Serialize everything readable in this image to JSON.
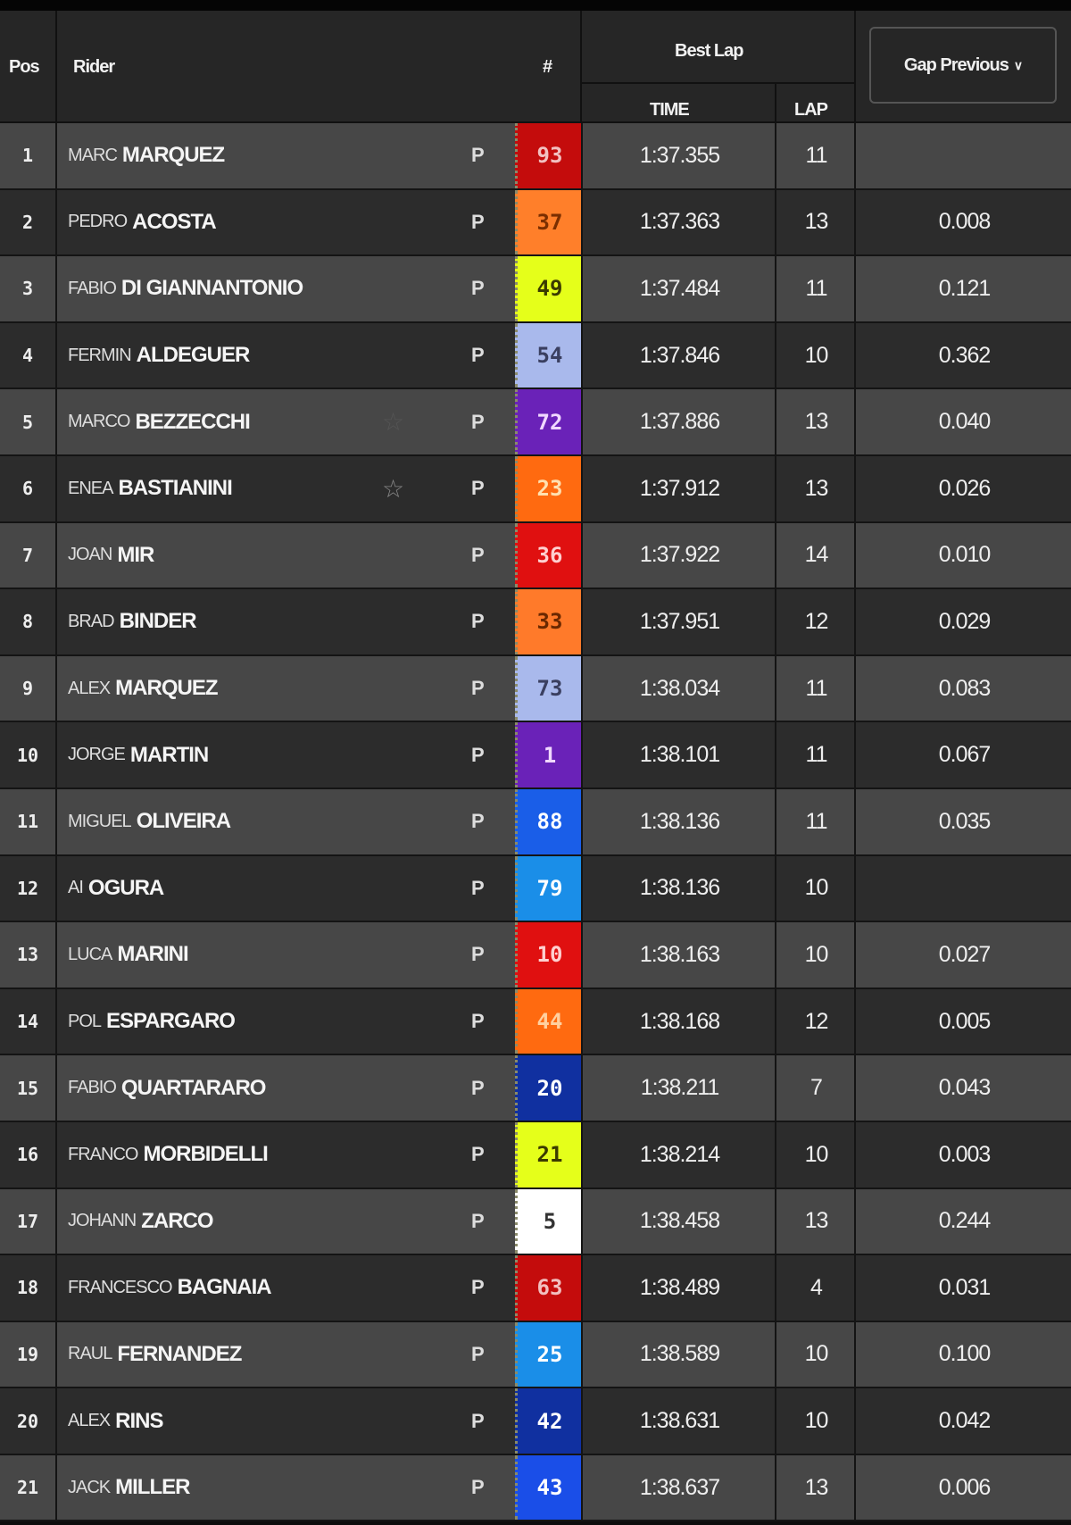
{
  "header": {
    "pos": "Pos",
    "rider": "Rider",
    "number": "#",
    "best_lap": "Best Lap",
    "time": "TIME",
    "lap": "LAP",
    "gap_dropdown": "Gap Previous",
    "gap_dropdown_icon": "chevron-down-icon"
  },
  "rows": [
    {
      "pos": "1",
      "first": "MARC",
      "last": "MARQUEZ",
      "num": "93",
      "color": "#c40c0c",
      "text": "#f2c0c0",
      "time": "1:37.355",
      "lap": "11",
      "gap": ""
    },
    {
      "pos": "2",
      "first": "PEDRO",
      "last": "ACOSTA",
      "num": "37",
      "color": "#ff7f2a",
      "text": "#7a2e00",
      "time": "1:37.363",
      "lap": "13",
      "gap": "0.008"
    },
    {
      "pos": "3",
      "first": "FABIO",
      "last": "DI GIANNANTONIO",
      "num": "49",
      "color": "#e5ff1a",
      "text": "#3a3a00",
      "time": "1:37.484",
      "lap": "11",
      "gap": "0.121"
    },
    {
      "pos": "4",
      "first": "FERMIN",
      "last": "ALDEGUER",
      "num": "54",
      "color": "#a9b9ec",
      "text": "#3a3f60",
      "time": "1:37.846",
      "lap": "10",
      "gap": "0.362"
    },
    {
      "pos": "5",
      "first": "MARCO",
      "last": "BEZZECCHI",
      "num": "72",
      "color": "#6a22b8",
      "text": "#f0d8ff",
      "time": "1:37.886",
      "lap": "13",
      "gap": "0.040",
      "star": true,
      "star_faint": true
    },
    {
      "pos": "6",
      "first": "ENEA",
      "last": "BASTIANINI",
      "num": "23",
      "color": "#ff6a10",
      "text": "#ffe0b0",
      "time": "1:37.912",
      "lap": "13",
      "gap": "0.026",
      "star": true
    },
    {
      "pos": "7",
      "first": "JOAN",
      "last": "MIR",
      "num": "36",
      "color": "#e01010",
      "text": "#ffd0d0",
      "time": "1:37.922",
      "lap": "14",
      "gap": "0.010"
    },
    {
      "pos": "8",
      "first": "BRAD",
      "last": "BINDER",
      "num": "33",
      "color": "#ff7a2a",
      "text": "#6a2800",
      "time": "1:37.951",
      "lap": "12",
      "gap": "0.029"
    },
    {
      "pos": "9",
      "first": "ALEX",
      "last": "MARQUEZ",
      "num": "73",
      "color": "#a9b9ec",
      "text": "#3a3f60",
      "time": "1:38.034",
      "lap": "11",
      "gap": "0.083"
    },
    {
      "pos": "10",
      "first": "JORGE",
      "last": "MARTIN",
      "num": "1",
      "color": "#6a22b8",
      "text": "#f0d8ff",
      "time": "1:38.101",
      "lap": "11",
      "gap": "0.067"
    },
    {
      "pos": "11",
      "first": "MIGUEL",
      "last": "OLIVEIRA",
      "num": "88",
      "color": "#1a5ee8",
      "text": "#ffffff",
      "time": "1:38.136",
      "lap": "11",
      "gap": "0.035"
    },
    {
      "pos": "12",
      "first": "AI",
      "last": "OGURA",
      "num": "79",
      "color": "#1a8ee8",
      "text": "#ffffff",
      "time": "1:38.136",
      "lap": "10",
      "gap": ""
    },
    {
      "pos": "13",
      "first": "LUCA",
      "last": "MARINI",
      "num": "10",
      "color": "#e01010",
      "text": "#ffd0d0",
      "time": "1:38.163",
      "lap": "10",
      "gap": "0.027"
    },
    {
      "pos": "14",
      "first": "POL",
      "last": "ESPARGARO",
      "num": "44",
      "color": "#ff6a10",
      "text": "#ffd0a0",
      "time": "1:38.168",
      "lap": "12",
      "gap": "0.005"
    },
    {
      "pos": "15",
      "first": "FABIO",
      "last": "QUARTARARO",
      "num": "20",
      "color": "#1030a0",
      "text": "#ffffff",
      "time": "1:38.211",
      "lap": "7",
      "gap": "0.043"
    },
    {
      "pos": "16",
      "first": "FRANCO",
      "last": "MORBIDELLI",
      "num": "21",
      "color": "#e5ff1a",
      "text": "#3a3a00",
      "time": "1:38.214",
      "lap": "10",
      "gap": "0.003"
    },
    {
      "pos": "17",
      "first": "JOHANN",
      "last": "ZARCO",
      "num": "5",
      "color": "#ffffff",
      "text": "#333333",
      "time": "1:38.458",
      "lap": "13",
      "gap": "0.244"
    },
    {
      "pos": "18",
      "first": "FRANCESCO",
      "last": "BAGNAIA",
      "num": "63",
      "color": "#c40c0c",
      "text": "#f2c0c0",
      "time": "1:38.489",
      "lap": "4",
      "gap": "0.031"
    },
    {
      "pos": "19",
      "first": "RAUL",
      "last": "FERNANDEZ",
      "num": "25",
      "color": "#1a8ee8",
      "text": "#ffffff",
      "time": "1:38.589",
      "lap": "10",
      "gap": "0.100"
    },
    {
      "pos": "20",
      "first": "ALEX",
      "last": "RINS",
      "num": "42",
      "color": "#1030a0",
      "text": "#ffffff",
      "time": "1:38.631",
      "lap": "10",
      "gap": "0.042"
    },
    {
      "pos": "21",
      "first": "JACK",
      "last": "MILLER",
      "num": "43",
      "color": "#1a4ee8",
      "text": "#ffffff",
      "time": "1:38.637",
      "lap": "13",
      "gap": "0.006"
    }
  ]
}
